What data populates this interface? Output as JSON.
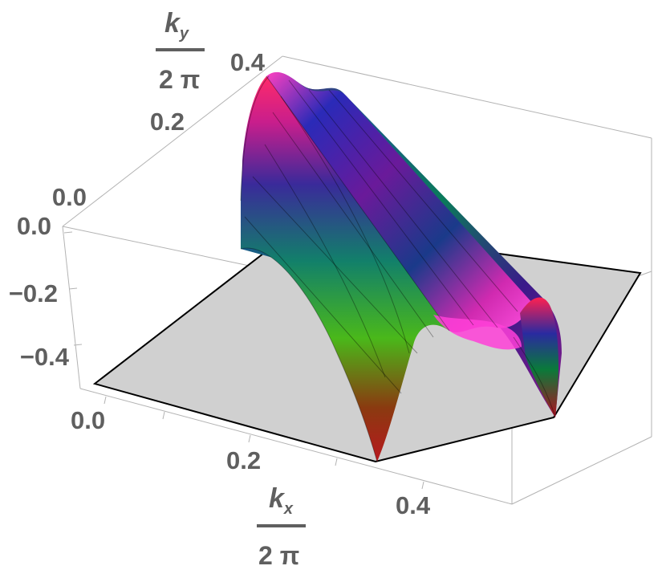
{
  "chart_data": {
    "type": "surface3d",
    "x_axis": {
      "label_main": "k",
      "label_sub": "x",
      "label_denominator": "2 π",
      "ticks": [
        "0.0",
        "0.2",
        "0.4"
      ]
    },
    "y_axis": {
      "label_main": "k",
      "label_sub": "y",
      "label_denominator": "2 π",
      "ticks": [
        "0.0",
        "0.2",
        "0.4"
      ]
    },
    "z_axis": {
      "ticks": [
        "0.0",
        "-0.2",
        "-0.4"
      ],
      "tick_display": [
        "0.0",
        "−0.2",
        "−0.4"
      ]
    },
    "ranges": {
      "kx": [
        0,
        0.5
      ],
      "ky": [
        0,
        0.45
      ],
      "z": [
        -0.5,
        0
      ]
    },
    "colormap": "hue (red-magenta-blue-green-red)",
    "colors": {
      "base_plane": "#d0d0d0",
      "axis_text": "#5f5f5f",
      "box_lines": "#b3b3b3"
    }
  }
}
